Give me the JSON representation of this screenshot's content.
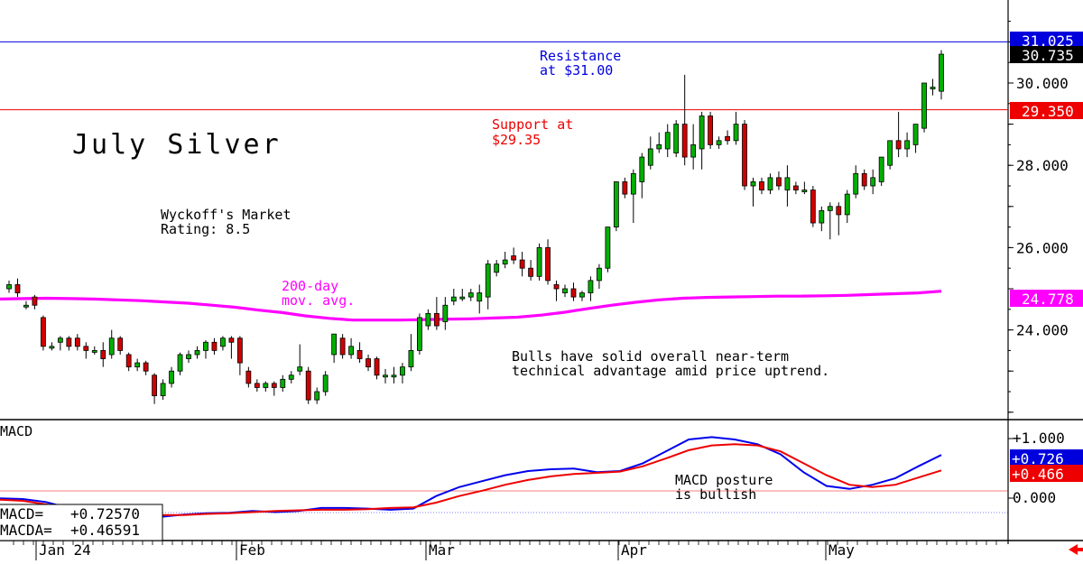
{
  "chart_data": [
    {
      "type": "candlestick",
      "title": "July Silver",
      "y_axis_ticks": [
        "30.000",
        "28.000",
        "26.000",
        "24.000"
      ],
      "ylim": [
        22.0,
        32.0
      ],
      "x_axis_labels": [
        "Jan 24",
        "Feb",
        "Mar",
        "Apr",
        "May"
      ],
      "price_tags": [
        {
          "label": "31.025",
          "value": 31.025,
          "color": "#0000dd",
          "text_color": "#ffffff"
        },
        {
          "label": "30.735",
          "value": 30.735,
          "color": "#000000",
          "text_color": "#ffffff"
        },
        {
          "label": "29.350",
          "value": 29.35,
          "color": "#ee0000",
          "text_color": "#ffffff"
        },
        {
          "label": "24.778",
          "value": 24.778,
          "color": "#ff00ff",
          "text_color": "#ffffff"
        }
      ],
      "horizontal_lines": [
        {
          "name": "resistance",
          "value": 31.0,
          "color": "#0000dd"
        },
        {
          "name": "support",
          "value": 29.35,
          "color": "#ee0000"
        }
      ],
      "annotations": {
        "resistance": [
          "Resistance",
          "at $31.00"
        ],
        "support": [
          "Support at",
          "$29.35"
        ],
        "rating": [
          "Wyckoff's Market",
          "Rating: 8.5"
        ],
        "moving_average": [
          "200-day",
          "mov. avg."
        ],
        "comment": [
          "Bulls have solid overall near-term",
          "technical advantage amid price uptrend."
        ]
      },
      "candles": [
        {
          "o": 25.0,
          "h": 25.2,
          "l": 24.9,
          "c": 25.1
        },
        {
          "o": 25.1,
          "h": 25.25,
          "l": 24.8,
          "c": 24.9
        },
        {
          "o": 24.6,
          "h": 24.7,
          "l": 24.5,
          "c": 24.6
        },
        {
          "o": 24.8,
          "h": 24.85,
          "l": 24.5,
          "c": 24.6
        },
        {
          "o": 24.3,
          "h": 24.35,
          "l": 23.5,
          "c": 23.6
        },
        {
          "o": 23.6,
          "h": 23.7,
          "l": 23.5,
          "c": 23.6
        },
        {
          "o": 23.7,
          "h": 23.85,
          "l": 23.5,
          "c": 23.8
        },
        {
          "o": 23.8,
          "h": 23.85,
          "l": 23.5,
          "c": 23.6
        },
        {
          "o": 23.8,
          "h": 23.9,
          "l": 23.5,
          "c": 23.6
        },
        {
          "o": 23.6,
          "h": 23.7,
          "l": 23.3,
          "c": 23.5
        },
        {
          "o": 23.5,
          "h": 23.6,
          "l": 23.4,
          "c": 23.5
        },
        {
          "o": 23.5,
          "h": 23.7,
          "l": 23.1,
          "c": 23.3
        },
        {
          "o": 23.4,
          "h": 24.0,
          "l": 23.3,
          "c": 23.8
        },
        {
          "o": 23.8,
          "h": 23.85,
          "l": 23.4,
          "c": 23.5
        },
        {
          "o": 23.4,
          "h": 23.45,
          "l": 23.0,
          "c": 23.1
        },
        {
          "o": 23.1,
          "h": 23.3,
          "l": 23.0,
          "c": 23.2
        },
        {
          "o": 23.2,
          "h": 23.25,
          "l": 22.9,
          "c": 23.0
        },
        {
          "o": 22.9,
          "h": 22.95,
          "l": 22.2,
          "c": 22.4
        },
        {
          "o": 22.4,
          "h": 22.8,
          "l": 22.3,
          "c": 22.7
        },
        {
          "o": 22.7,
          "h": 23.1,
          "l": 22.6,
          "c": 23.0
        },
        {
          "o": 23.0,
          "h": 23.45,
          "l": 22.9,
          "c": 23.4
        },
        {
          "o": 23.3,
          "h": 23.5,
          "l": 23.2,
          "c": 23.4
        },
        {
          "o": 23.4,
          "h": 23.6,
          "l": 23.3,
          "c": 23.5
        },
        {
          "o": 23.5,
          "h": 23.75,
          "l": 23.3,
          "c": 23.7
        },
        {
          "o": 23.7,
          "h": 23.8,
          "l": 23.4,
          "c": 23.5
        },
        {
          "o": 23.6,
          "h": 23.85,
          "l": 23.5,
          "c": 23.8
        },
        {
          "o": 23.8,
          "h": 23.85,
          "l": 23.3,
          "c": 23.7
        },
        {
          "o": 23.8,
          "h": 23.85,
          "l": 22.9,
          "c": 23.2
        },
        {
          "o": 23.0,
          "h": 23.1,
          "l": 22.6,
          "c": 22.7
        },
        {
          "o": 22.7,
          "h": 22.8,
          "l": 22.5,
          "c": 22.6
        },
        {
          "o": 22.6,
          "h": 22.75,
          "l": 22.5,
          "c": 22.7
        },
        {
          "o": 22.7,
          "h": 22.75,
          "l": 22.4,
          "c": 22.6
        },
        {
          "o": 22.6,
          "h": 22.9,
          "l": 22.5,
          "c": 22.8
        },
        {
          "o": 22.8,
          "h": 23.0,
          "l": 22.7,
          "c": 22.9
        },
        {
          "o": 23.0,
          "h": 23.65,
          "l": 22.9,
          "c": 23.1
        },
        {
          "o": 23.0,
          "h": 23.1,
          "l": 22.2,
          "c": 22.3
        },
        {
          "o": 22.3,
          "h": 22.6,
          "l": 22.2,
          "c": 22.5
        },
        {
          "o": 22.5,
          "h": 23.0,
          "l": 22.4,
          "c": 22.9
        },
        {
          "o": 23.4,
          "h": 23.9,
          "l": 23.2,
          "c": 23.9
        },
        {
          "o": 23.8,
          "h": 23.9,
          "l": 23.3,
          "c": 23.4
        },
        {
          "o": 23.4,
          "h": 23.8,
          "l": 23.3,
          "c": 23.6
        },
        {
          "o": 23.5,
          "h": 23.7,
          "l": 23.2,
          "c": 23.3
        },
        {
          "o": 23.3,
          "h": 23.4,
          "l": 23.0,
          "c": 23.1
        },
        {
          "o": 23.3,
          "h": 23.35,
          "l": 22.8,
          "c": 22.9
        },
        {
          "o": 22.9,
          "h": 23.05,
          "l": 22.7,
          "c": 22.9
        },
        {
          "o": 22.9,
          "h": 23.1,
          "l": 22.7,
          "c": 22.9
        },
        {
          "o": 22.9,
          "h": 23.2,
          "l": 22.7,
          "c": 23.1
        },
        {
          "o": 23.1,
          "h": 23.9,
          "l": 23.0,
          "c": 23.5
        },
        {
          "o": 23.5,
          "h": 24.4,
          "l": 23.4,
          "c": 24.3
        },
        {
          "o": 24.1,
          "h": 24.5,
          "l": 24.0,
          "c": 24.4
        },
        {
          "o": 24.4,
          "h": 24.8,
          "l": 24.0,
          "c": 24.1
        },
        {
          "o": 24.2,
          "h": 24.8,
          "l": 24.0,
          "c": 24.6
        },
        {
          "o": 24.7,
          "h": 25.0,
          "l": 24.6,
          "c": 24.8
        },
        {
          "o": 24.8,
          "h": 25.0,
          "l": 24.7,
          "c": 24.8
        },
        {
          "o": 24.8,
          "h": 25.0,
          "l": 24.7,
          "c": 24.9
        },
        {
          "o": 24.7,
          "h": 25.1,
          "l": 24.4,
          "c": 24.9
        },
        {
          "o": 24.8,
          "h": 25.7,
          "l": 24.5,
          "c": 25.6
        },
        {
          "o": 25.4,
          "h": 25.7,
          "l": 25.3,
          "c": 25.6
        },
        {
          "o": 25.6,
          "h": 25.9,
          "l": 25.5,
          "c": 25.7
        },
        {
          "o": 25.8,
          "h": 26.0,
          "l": 25.6,
          "c": 25.7
        },
        {
          "o": 25.7,
          "h": 25.9,
          "l": 25.3,
          "c": 25.5
        },
        {
          "o": 25.5,
          "h": 25.7,
          "l": 25.2,
          "c": 25.3
        },
        {
          "o": 25.3,
          "h": 26.1,
          "l": 25.2,
          "c": 26.0
        },
        {
          "o": 26.0,
          "h": 26.2,
          "l": 25.1,
          "c": 25.2
        },
        {
          "o": 25.1,
          "h": 25.2,
          "l": 24.7,
          "c": 25.0
        },
        {
          "o": 24.9,
          "h": 25.1,
          "l": 24.8,
          "c": 25.0
        },
        {
          "o": 25.0,
          "h": 25.15,
          "l": 24.7,
          "c": 24.8
        },
        {
          "o": 24.8,
          "h": 24.95,
          "l": 24.7,
          "c": 24.9
        },
        {
          "o": 24.9,
          "h": 25.3,
          "l": 24.7,
          "c": 25.2
        },
        {
          "o": 25.2,
          "h": 25.6,
          "l": 25.0,
          "c": 25.5
        },
        {
          "o": 25.5,
          "h": 26.5,
          "l": 25.4,
          "c": 26.5
        },
        {
          "o": 26.5,
          "h": 27.6,
          "l": 26.4,
          "c": 27.6
        },
        {
          "o": 27.6,
          "h": 27.7,
          "l": 27.2,
          "c": 27.3
        },
        {
          "o": 27.3,
          "h": 27.9,
          "l": 26.6,
          "c": 27.8
        },
        {
          "o": 27.6,
          "h": 28.3,
          "l": 27.2,
          "c": 28.2
        },
        {
          "o": 28.0,
          "h": 28.7,
          "l": 27.9,
          "c": 28.4
        },
        {
          "o": 28.4,
          "h": 28.8,
          "l": 28.3,
          "c": 28.5
        },
        {
          "o": 28.4,
          "h": 29.0,
          "l": 28.2,
          "c": 28.8
        },
        {
          "o": 28.3,
          "h": 29.1,
          "l": 28.2,
          "c": 29.0
        },
        {
          "o": 29.0,
          "h": 30.2,
          "l": 28.0,
          "c": 28.2
        },
        {
          "o": 28.2,
          "h": 29.0,
          "l": 27.9,
          "c": 28.5
        },
        {
          "o": 28.4,
          "h": 29.3,
          "l": 27.9,
          "c": 29.2
        },
        {
          "o": 29.2,
          "h": 29.3,
          "l": 28.4,
          "c": 28.5
        },
        {
          "o": 28.5,
          "h": 28.7,
          "l": 28.4,
          "c": 28.6
        },
        {
          "o": 28.7,
          "h": 28.85,
          "l": 28.5,
          "c": 28.6
        },
        {
          "o": 28.6,
          "h": 29.3,
          "l": 28.5,
          "c": 29.0
        },
        {
          "o": 29.0,
          "h": 29.1,
          "l": 27.4,
          "c": 27.5
        },
        {
          "o": 27.5,
          "h": 27.7,
          "l": 27.0,
          "c": 27.6
        },
        {
          "o": 27.6,
          "h": 27.7,
          "l": 27.3,
          "c": 27.4
        },
        {
          "o": 27.4,
          "h": 27.8,
          "l": 27.3,
          "c": 27.7
        },
        {
          "o": 27.7,
          "h": 27.85,
          "l": 27.4,
          "c": 27.5
        },
        {
          "o": 27.4,
          "h": 28.0,
          "l": 27.0,
          "c": 27.7
        },
        {
          "o": 27.5,
          "h": 27.6,
          "l": 27.3,
          "c": 27.4
        },
        {
          "o": 27.4,
          "h": 27.6,
          "l": 27.3,
          "c": 27.4
        },
        {
          "o": 27.4,
          "h": 27.5,
          "l": 26.5,
          "c": 26.6
        },
        {
          "o": 26.6,
          "h": 27.0,
          "l": 26.4,
          "c": 26.9
        },
        {
          "o": 26.9,
          "h": 27.1,
          "l": 26.2,
          "c": 27.0
        },
        {
          "o": 27.0,
          "h": 27.1,
          "l": 26.3,
          "c": 26.8
        },
        {
          "o": 26.8,
          "h": 27.4,
          "l": 26.6,
          "c": 27.3
        },
        {
          "o": 27.3,
          "h": 28.0,
          "l": 27.2,
          "c": 27.8
        },
        {
          "o": 27.8,
          "h": 27.9,
          "l": 27.4,
          "c": 27.5
        },
        {
          "o": 27.5,
          "h": 27.9,
          "l": 27.3,
          "c": 27.7
        },
        {
          "o": 27.6,
          "h": 28.2,
          "l": 27.5,
          "c": 28.2
        },
        {
          "o": 28.0,
          "h": 28.6,
          "l": 27.9,
          "c": 28.6
        },
        {
          "o": 28.6,
          "h": 29.3,
          "l": 28.2,
          "c": 28.4
        },
        {
          "o": 28.4,
          "h": 28.8,
          "l": 28.2,
          "c": 28.6
        },
        {
          "o": 28.5,
          "h": 29.0,
          "l": 28.3,
          "c": 29.0
        },
        {
          "o": 28.9,
          "h": 30.0,
          "l": 28.8,
          "c": 30.0
        },
        {
          "o": 29.9,
          "h": 30.1,
          "l": 29.7,
          "c": 29.9
        },
        {
          "o": 29.8,
          "h": 30.8,
          "l": 29.6,
          "c": 30.7
        }
      ],
      "moving_average": {
        "name": "200-day mov. avg.",
        "color": "#ff00ff",
        "values": [
          24.75,
          24.76,
          24.77,
          24.76,
          24.75,
          24.73,
          24.71,
          24.68,
          24.65,
          24.6,
          24.55,
          24.48,
          24.42,
          24.34,
          24.28,
          24.24,
          24.24,
          24.24,
          24.25,
          24.26,
          24.27,
          24.29,
          24.31,
          24.36,
          24.43,
          24.52,
          24.6,
          24.67,
          24.73,
          24.77,
          24.79,
          24.8,
          24.81,
          24.82,
          24.82,
          24.83,
          24.84,
          24.86,
          24.88,
          24.9,
          24.94
        ]
      }
    },
    {
      "type": "line",
      "title": "MACD",
      "y_axis_ticks": [
        "+1.000",
        "0.000"
      ],
      "ylim": [
        -0.6,
        1.15
      ],
      "readout": {
        "macd_label": "MACD=",
        "macd_value": "+0.72570",
        "macda_label": "MACDA=",
        "macda_value": "+0.46591"
      },
      "price_tags": [
        {
          "label": "+0.726",
          "value": 0.726,
          "color": "#0000dd",
          "text_color": "#ffffff"
        },
        {
          "label": "+0.466",
          "value": 0.466,
          "color": "#ee0000",
          "text_color": "#ffffff"
        }
      ],
      "annotation": [
        "MACD posture",
        "is bullish"
      ],
      "series": [
        {
          "name": "MACD",
          "color": "#0000ee",
          "values": [
            0.01,
            0.0,
            -0.05,
            -0.15,
            -0.28,
            -0.33,
            -0.32,
            -0.3,
            -0.26,
            -0.24,
            -0.23,
            -0.2,
            -0.22,
            -0.2,
            -0.15,
            -0.15,
            -0.16,
            -0.18,
            -0.16,
            0.05,
            0.2,
            0.3,
            0.4,
            0.47,
            0.5,
            0.51,
            0.45,
            0.47,
            0.6,
            0.8,
            1.0,
            1.04,
            1.0,
            0.92,
            0.75,
            0.45,
            0.22,
            0.17,
            0.24,
            0.35,
            0.55,
            0.74
          ]
        },
        {
          "name": "MACDA",
          "color": "#ee0000",
          "values": [
            -0.01,
            -0.03,
            -0.09,
            -0.15,
            -0.2,
            -0.24,
            -0.26,
            -0.27,
            -0.27,
            -0.25,
            -0.24,
            -0.22,
            -0.2,
            -0.19,
            -0.18,
            -0.18,
            -0.17,
            -0.15,
            -0.14,
            -0.06,
            0.05,
            0.14,
            0.24,
            0.32,
            0.38,
            0.42,
            0.44,
            0.46,
            0.55,
            0.68,
            0.82,
            0.9,
            0.92,
            0.9,
            0.8,
            0.6,
            0.4,
            0.24,
            0.2,
            0.24,
            0.36,
            0.48
          ]
        }
      ]
    }
  ],
  "side_marker": {
    "icon": "left-arrow-icon",
    "color": "#ff0000"
  }
}
